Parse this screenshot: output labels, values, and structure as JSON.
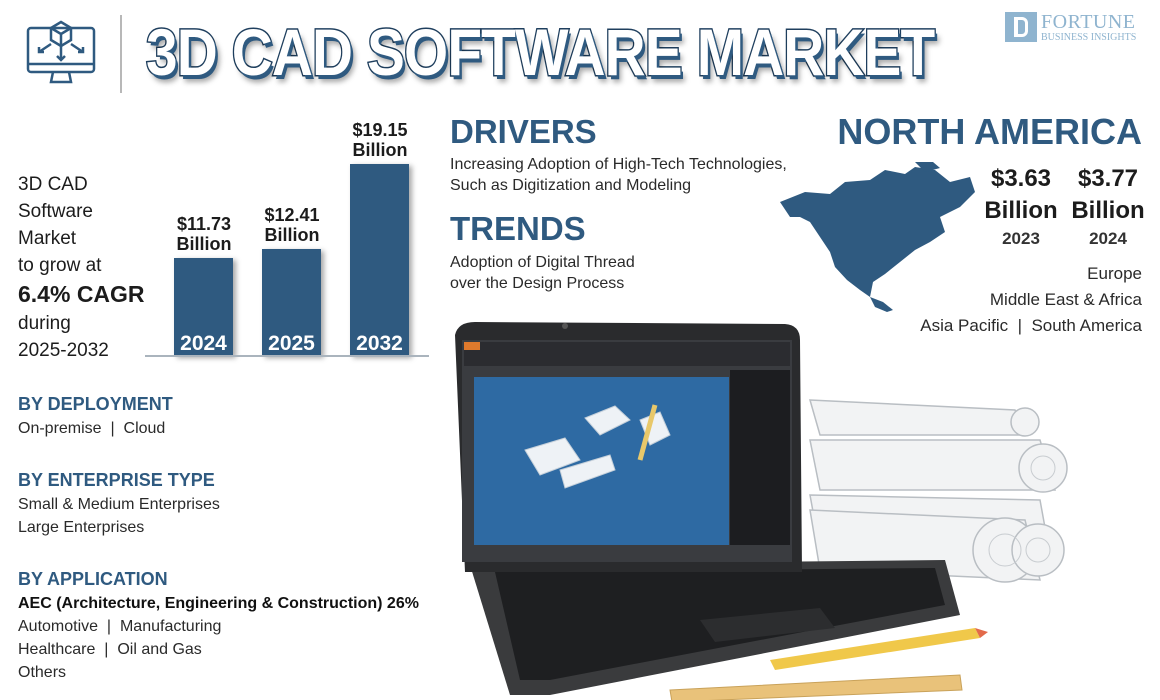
{
  "header": {
    "title": "3D CAD SOFTWARE MARKET",
    "logo_name": "FORTUNE",
    "logo_sub": "BUSINESS INSIGHTS",
    "icon": "monitor-3d-cube-icon"
  },
  "lead": {
    "lines": [
      "3D CAD",
      "Software",
      "Market",
      "to grow at"
    ],
    "cagr": "6.4% CAGR",
    "during": "during",
    "period": "2025-2032"
  },
  "chart_data": {
    "type": "bar",
    "categories": [
      "2024",
      "2025",
      "2032"
    ],
    "values": [
      11.73,
      12.41,
      19.15
    ],
    "value_labels": [
      "$11.73",
      "$12.41",
      "$19.15"
    ],
    "unit_label": "Billion",
    "title": "",
    "xlabel": "",
    "ylabel": "",
    "color": "#2f5a80",
    "grid": false
  },
  "drivers": {
    "title": "DRIVERS",
    "text": [
      "Increasing Adoption of High-Tech Technologies,",
      "Such as Digitization and Modeling"
    ]
  },
  "trends": {
    "title": "TRENDS",
    "text": [
      "Adoption of Digital Thread",
      "over the Design Process"
    ]
  },
  "region": {
    "title": "NORTH AMERICA",
    "values": [
      {
        "amount": "$3.63",
        "unit": "Billion",
        "year": "2023"
      },
      {
        "amount": "$3.77",
        "unit": "Billion",
        "year": "2024"
      }
    ],
    "others": [
      "Europe",
      "Middle East & Africa",
      "Asia Pacific  |  South America"
    ]
  },
  "segments": [
    {
      "title": "BY DEPLOYMENT",
      "items": [
        "On-premise  |  Cloud"
      ]
    },
    {
      "title": "BY ENTERPRISE TYPE",
      "items": [
        "Small & Medium Enterprises",
        "Large Enterprises"
      ]
    },
    {
      "title": "BY APPLICATION",
      "items": [
        "AEC (Architecture, Engineering & Construction) 26%",
        "Automotive  |  Manufacturing",
        "Healthcare  |  Oil and Gas",
        "Others"
      ]
    }
  ],
  "colors": {
    "brand": "#2f5a80",
    "logo": "#8fb4cf"
  }
}
